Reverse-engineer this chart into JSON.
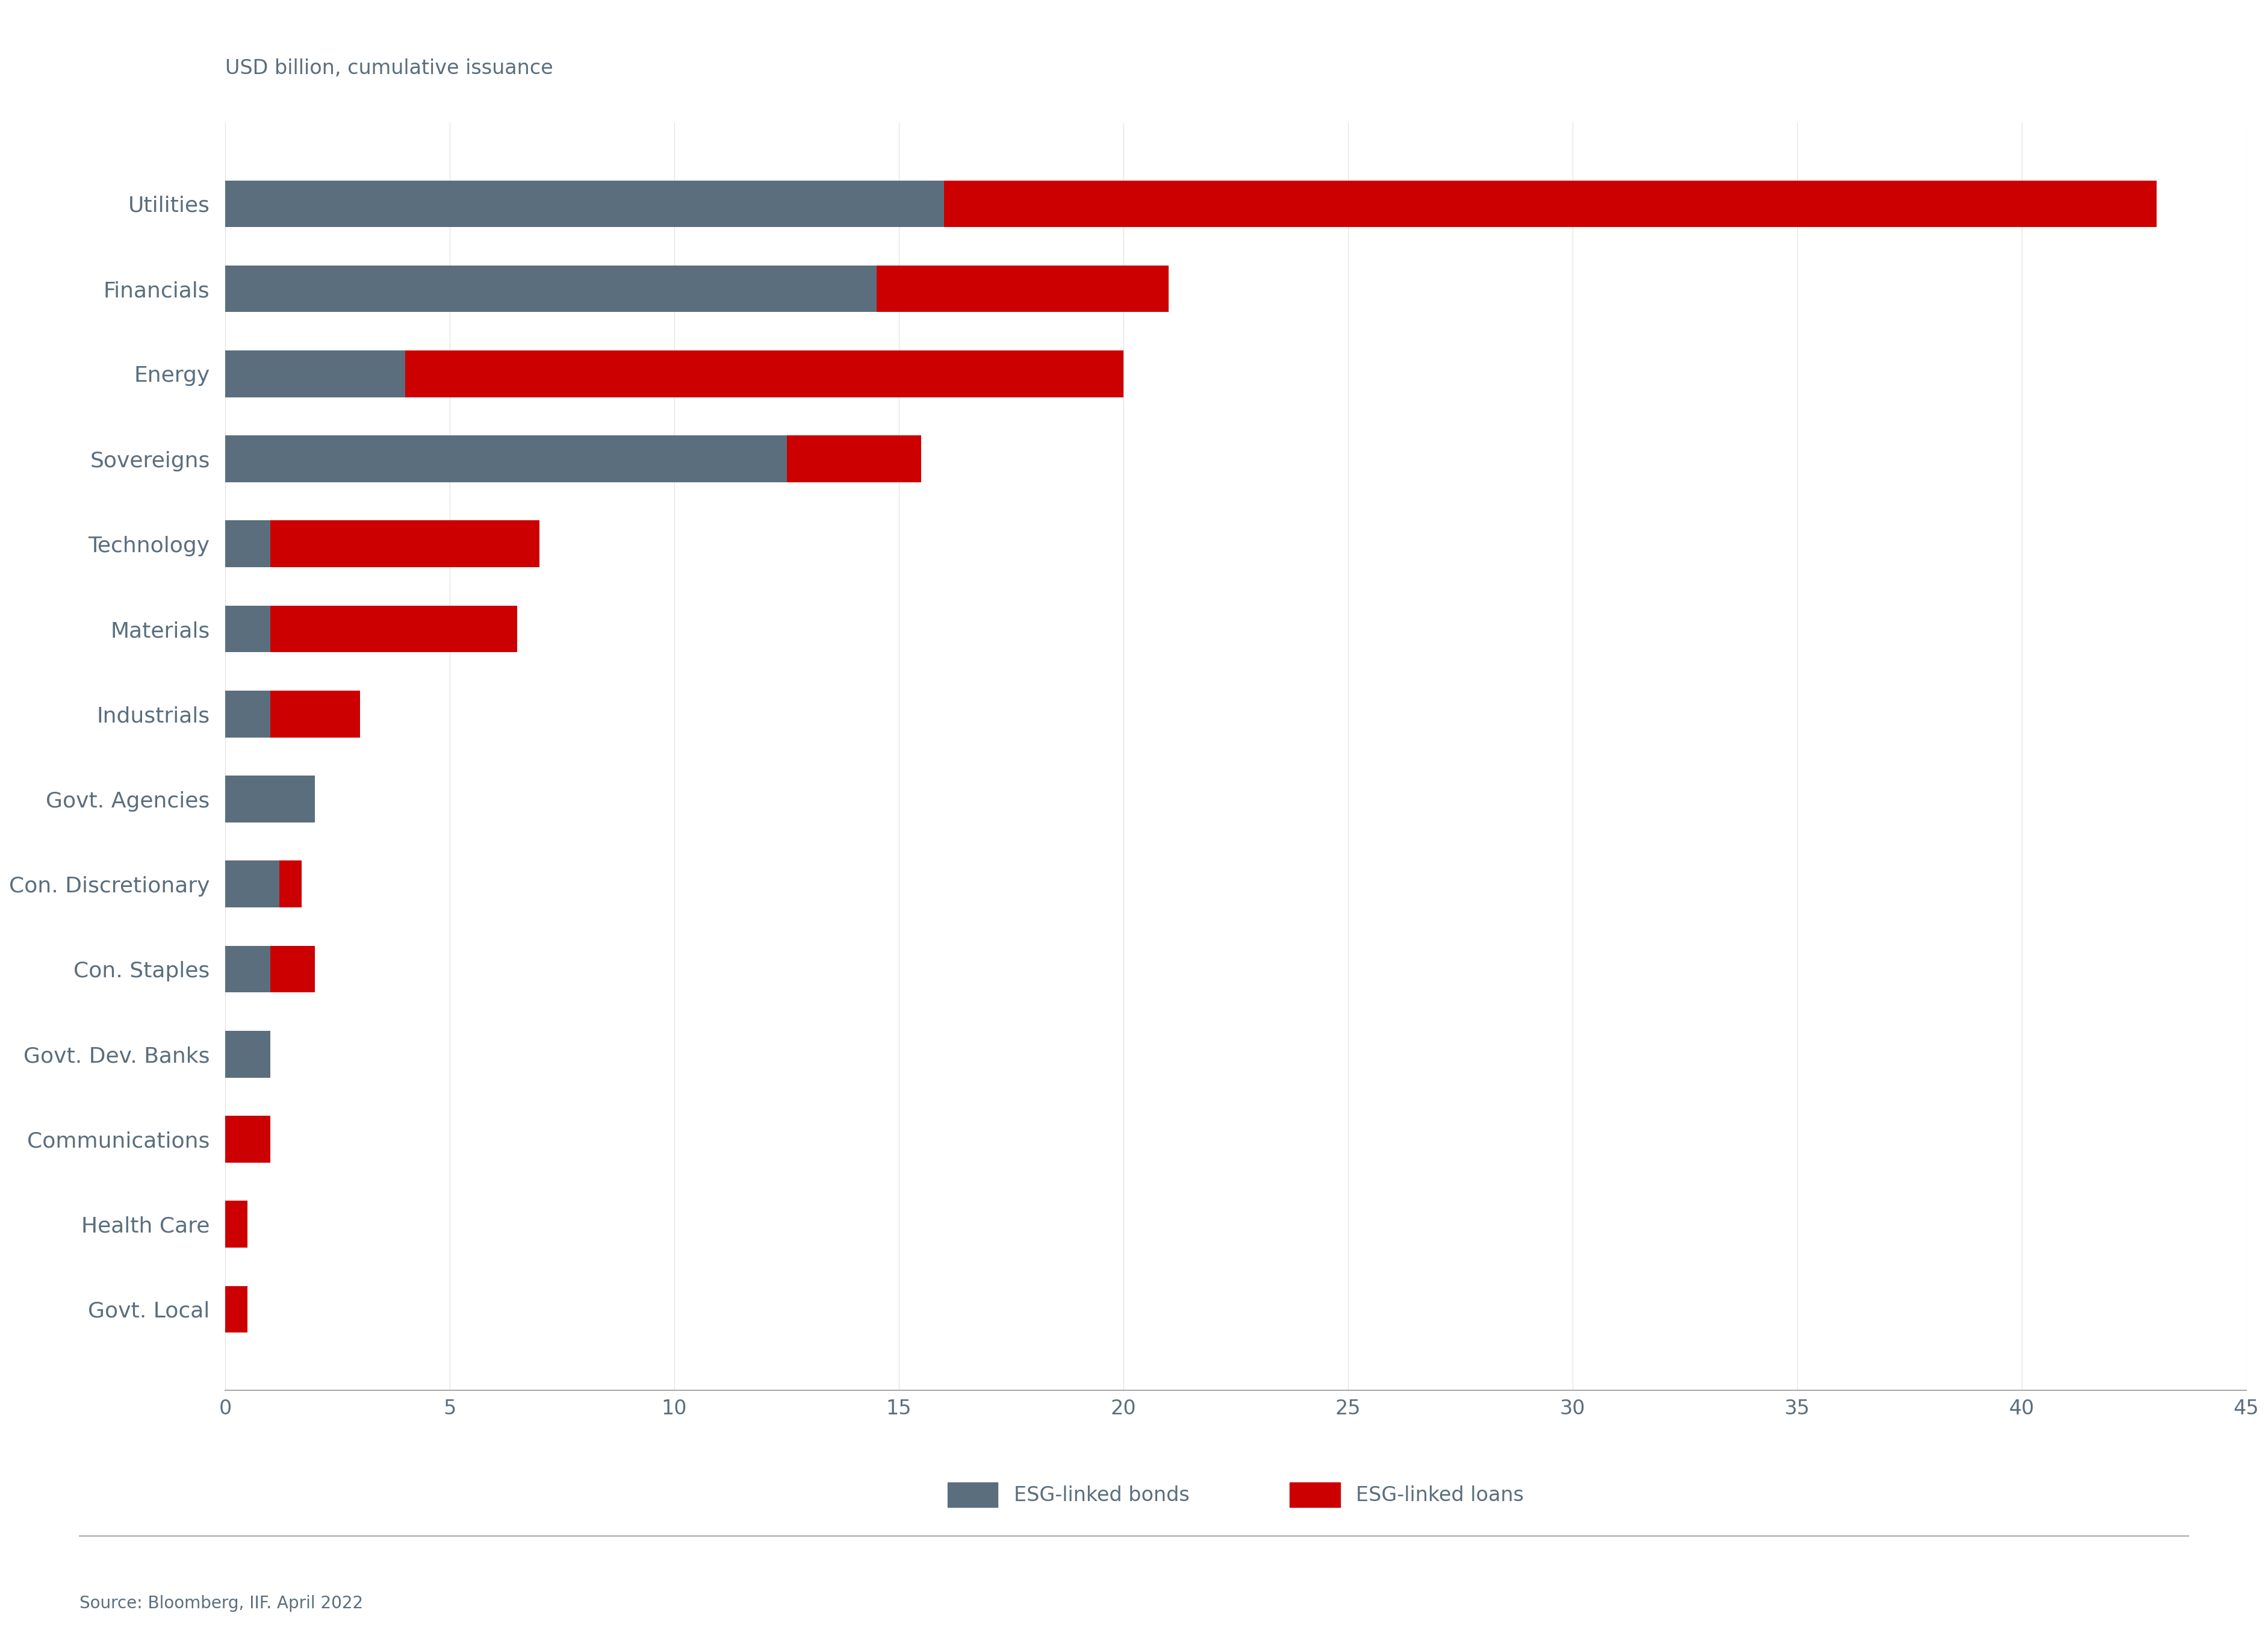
{
  "categories": [
    "Utilities",
    "Financials",
    "Energy",
    "Sovereigns",
    "Technology",
    "Materials",
    "Industrials",
    "Govt. Agencies",
    "Con. Discretionary",
    "Con. Staples",
    "Govt. Dev. Banks",
    "Communications",
    "Health Care",
    "Govt. Local"
  ],
  "bonds": [
    16.0,
    14.5,
    4.0,
    12.5,
    1.0,
    1.0,
    1.0,
    2.0,
    1.2,
    1.0,
    1.0,
    0.0,
    0.0,
    0.0
  ],
  "loans": [
    27.0,
    6.5,
    16.0,
    3.0,
    6.0,
    5.5,
    2.0,
    0.0,
    0.5,
    1.0,
    0.0,
    1.0,
    0.5,
    0.5
  ],
  "bond_color": "#5a6e7e",
  "loan_color": "#cc0000",
  "text_color": "#5a6e7e",
  "axis_label": "USD billion, cumulative issuance",
  "xlim": [
    0,
    45
  ],
  "xticks": [
    0,
    5,
    10,
    15,
    20,
    25,
    30,
    35,
    40,
    45
  ],
  "legend_bond_label": "ESG-linked bonds",
  "legend_loan_label": "ESG-linked loans",
  "source_text": "Source: Bloomberg, IIF. April 2022",
  "background_color": "#ffffff",
  "bar_height": 0.55,
  "axis_label_fontsize": 24,
  "label_fontsize": 26,
  "tick_fontsize": 24,
  "legend_fontsize": 24,
  "source_fontsize": 20
}
